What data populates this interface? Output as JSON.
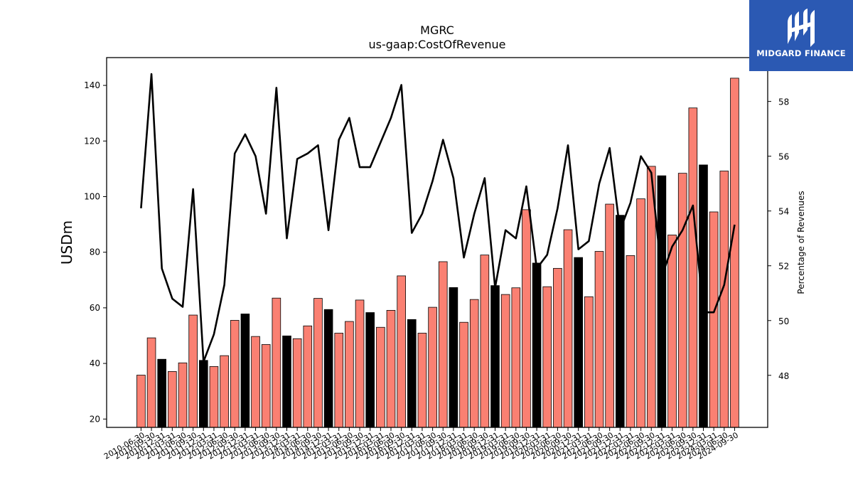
{
  "logo": {
    "name": "MIDGARD FINANCE",
    "icon": "midgard-logo-icon",
    "background": "#2b59b3"
  },
  "chart_data": {
    "type": "bar",
    "title": "MGRC",
    "subtitle": "us-gaap:CostOfRevenue",
    "ylabel": "USDm",
    "y2label": "Percentage of Revenues",
    "ylim": [
      17,
      150
    ],
    "y2lim": [
      46.1,
      59.6
    ],
    "yticks": [
      20,
      40,
      60,
      80,
      100,
      120,
      140
    ],
    "y2ticks": [
      48,
      50,
      52,
      54,
      56,
      58
    ],
    "grid": false,
    "categories": [
      "2010-06-30",
      "2010-09-30",
      "2010-12-31",
      "2011-03-31",
      "2011-06-30",
      "2011-09-30",
      "2011-12-31",
      "2012-03-31",
      "2012-06-30",
      "2012-09-30",
      "2012-12-31",
      "2013-03-31",
      "2013-06-30",
      "2013-09-30",
      "2013-12-31",
      "2014-03-31",
      "2014-06-30",
      "2014-09-30",
      "2014-12-31",
      "2015-03-31",
      "2015-06-30",
      "2015-09-30",
      "2015-12-31",
      "2016-03-31",
      "2016-06-30",
      "2016-09-30",
      "2016-12-31",
      "2017-03-31",
      "2017-06-30",
      "2017-09-30",
      "2017-12-31",
      "2018-03-31",
      "2018-06-30",
      "2018-09-30",
      "2018-12-31",
      "2019-03-31",
      "2019-06-30",
      "2019-09-30",
      "2019-12-31",
      "2020-03-31",
      "2020-06-30",
      "2020-09-30",
      "2020-12-31",
      "2021-03-31",
      "2021-06-30",
      "2021-09-30",
      "2021-12-31",
      "2022-03-31",
      "2022-06-30",
      "2022-09-30",
      "2022-12-31",
      "2023-03-31",
      "2023-06-30",
      "2023-09-30",
      "2023-12-31",
      "2024-03-31",
      "2024-06-30",
      "2024-09-30"
    ],
    "series": [
      {
        "type": "bar",
        "colors": {
          "quarter": "#fa8072",
          "annual": "#000000"
        },
        "values": [
          35.8,
          49.2,
          41.5,
          37.1,
          40.2,
          57.4,
          41.1,
          38.9,
          42.8,
          55.5,
          57.8,
          49.7,
          46.8,
          63.5,
          49.9,
          48.9,
          53.5,
          63.4,
          59.4,
          50.9,
          55.1,
          62.8,
          58.3,
          53.0,
          59.1,
          71.5,
          55.8,
          50.9,
          60.2,
          76.6,
          67.3,
          54.8,
          63.0,
          79.0,
          68.0,
          64.8,
          67.2,
          95.3,
          76.1,
          67.6,
          74.2,
          88.1,
          78.1,
          64.0,
          80.3,
          97.3,
          93.3,
          78.8,
          99.2,
          110.9,
          107.5,
          86.2,
          108.4,
          131.9,
          111.4,
          94.5,
          109.2,
          142.6
        ],
        "annual": [
          false,
          false,
          true,
          false,
          false,
          false,
          true,
          false,
          false,
          false,
          true,
          false,
          false,
          false,
          true,
          false,
          false,
          false,
          true,
          false,
          false,
          false,
          true,
          false,
          false,
          false,
          true,
          false,
          false,
          false,
          true,
          false,
          false,
          false,
          true,
          false,
          false,
          false,
          true,
          false,
          false,
          false,
          true,
          false,
          false,
          false,
          true,
          false,
          false,
          false,
          true,
          false,
          false,
          false,
          true,
          false,
          false,
          false
        ]
      },
      {
        "type": "line",
        "axis": "right",
        "color": "#000000",
        "values": [
          54.1,
          59.0,
          51.9,
          50.8,
          50.5,
          54.8,
          48.5,
          49.5,
          51.3,
          56.1,
          56.8,
          56.0,
          53.9,
          58.5,
          53.0,
          55.9,
          56.1,
          56.4,
          53.3,
          56.6,
          57.4,
          55.6,
          55.6,
          56.5,
          57.4,
          58.6,
          53.2,
          53.9,
          55.1,
          56.6,
          55.2,
          52.3,
          53.9,
          55.2,
          51.2,
          53.3,
          53.0,
          54.9,
          51.9,
          52.4,
          54.1,
          56.4,
          52.6,
          52.9,
          55.0,
          56.3,
          53.3,
          54.3,
          56.0,
          55.4,
          51.6,
          52.7,
          53.3,
          54.2,
          50.3,
          50.3,
          51.3,
          53.5
        ]
      }
    ]
  }
}
